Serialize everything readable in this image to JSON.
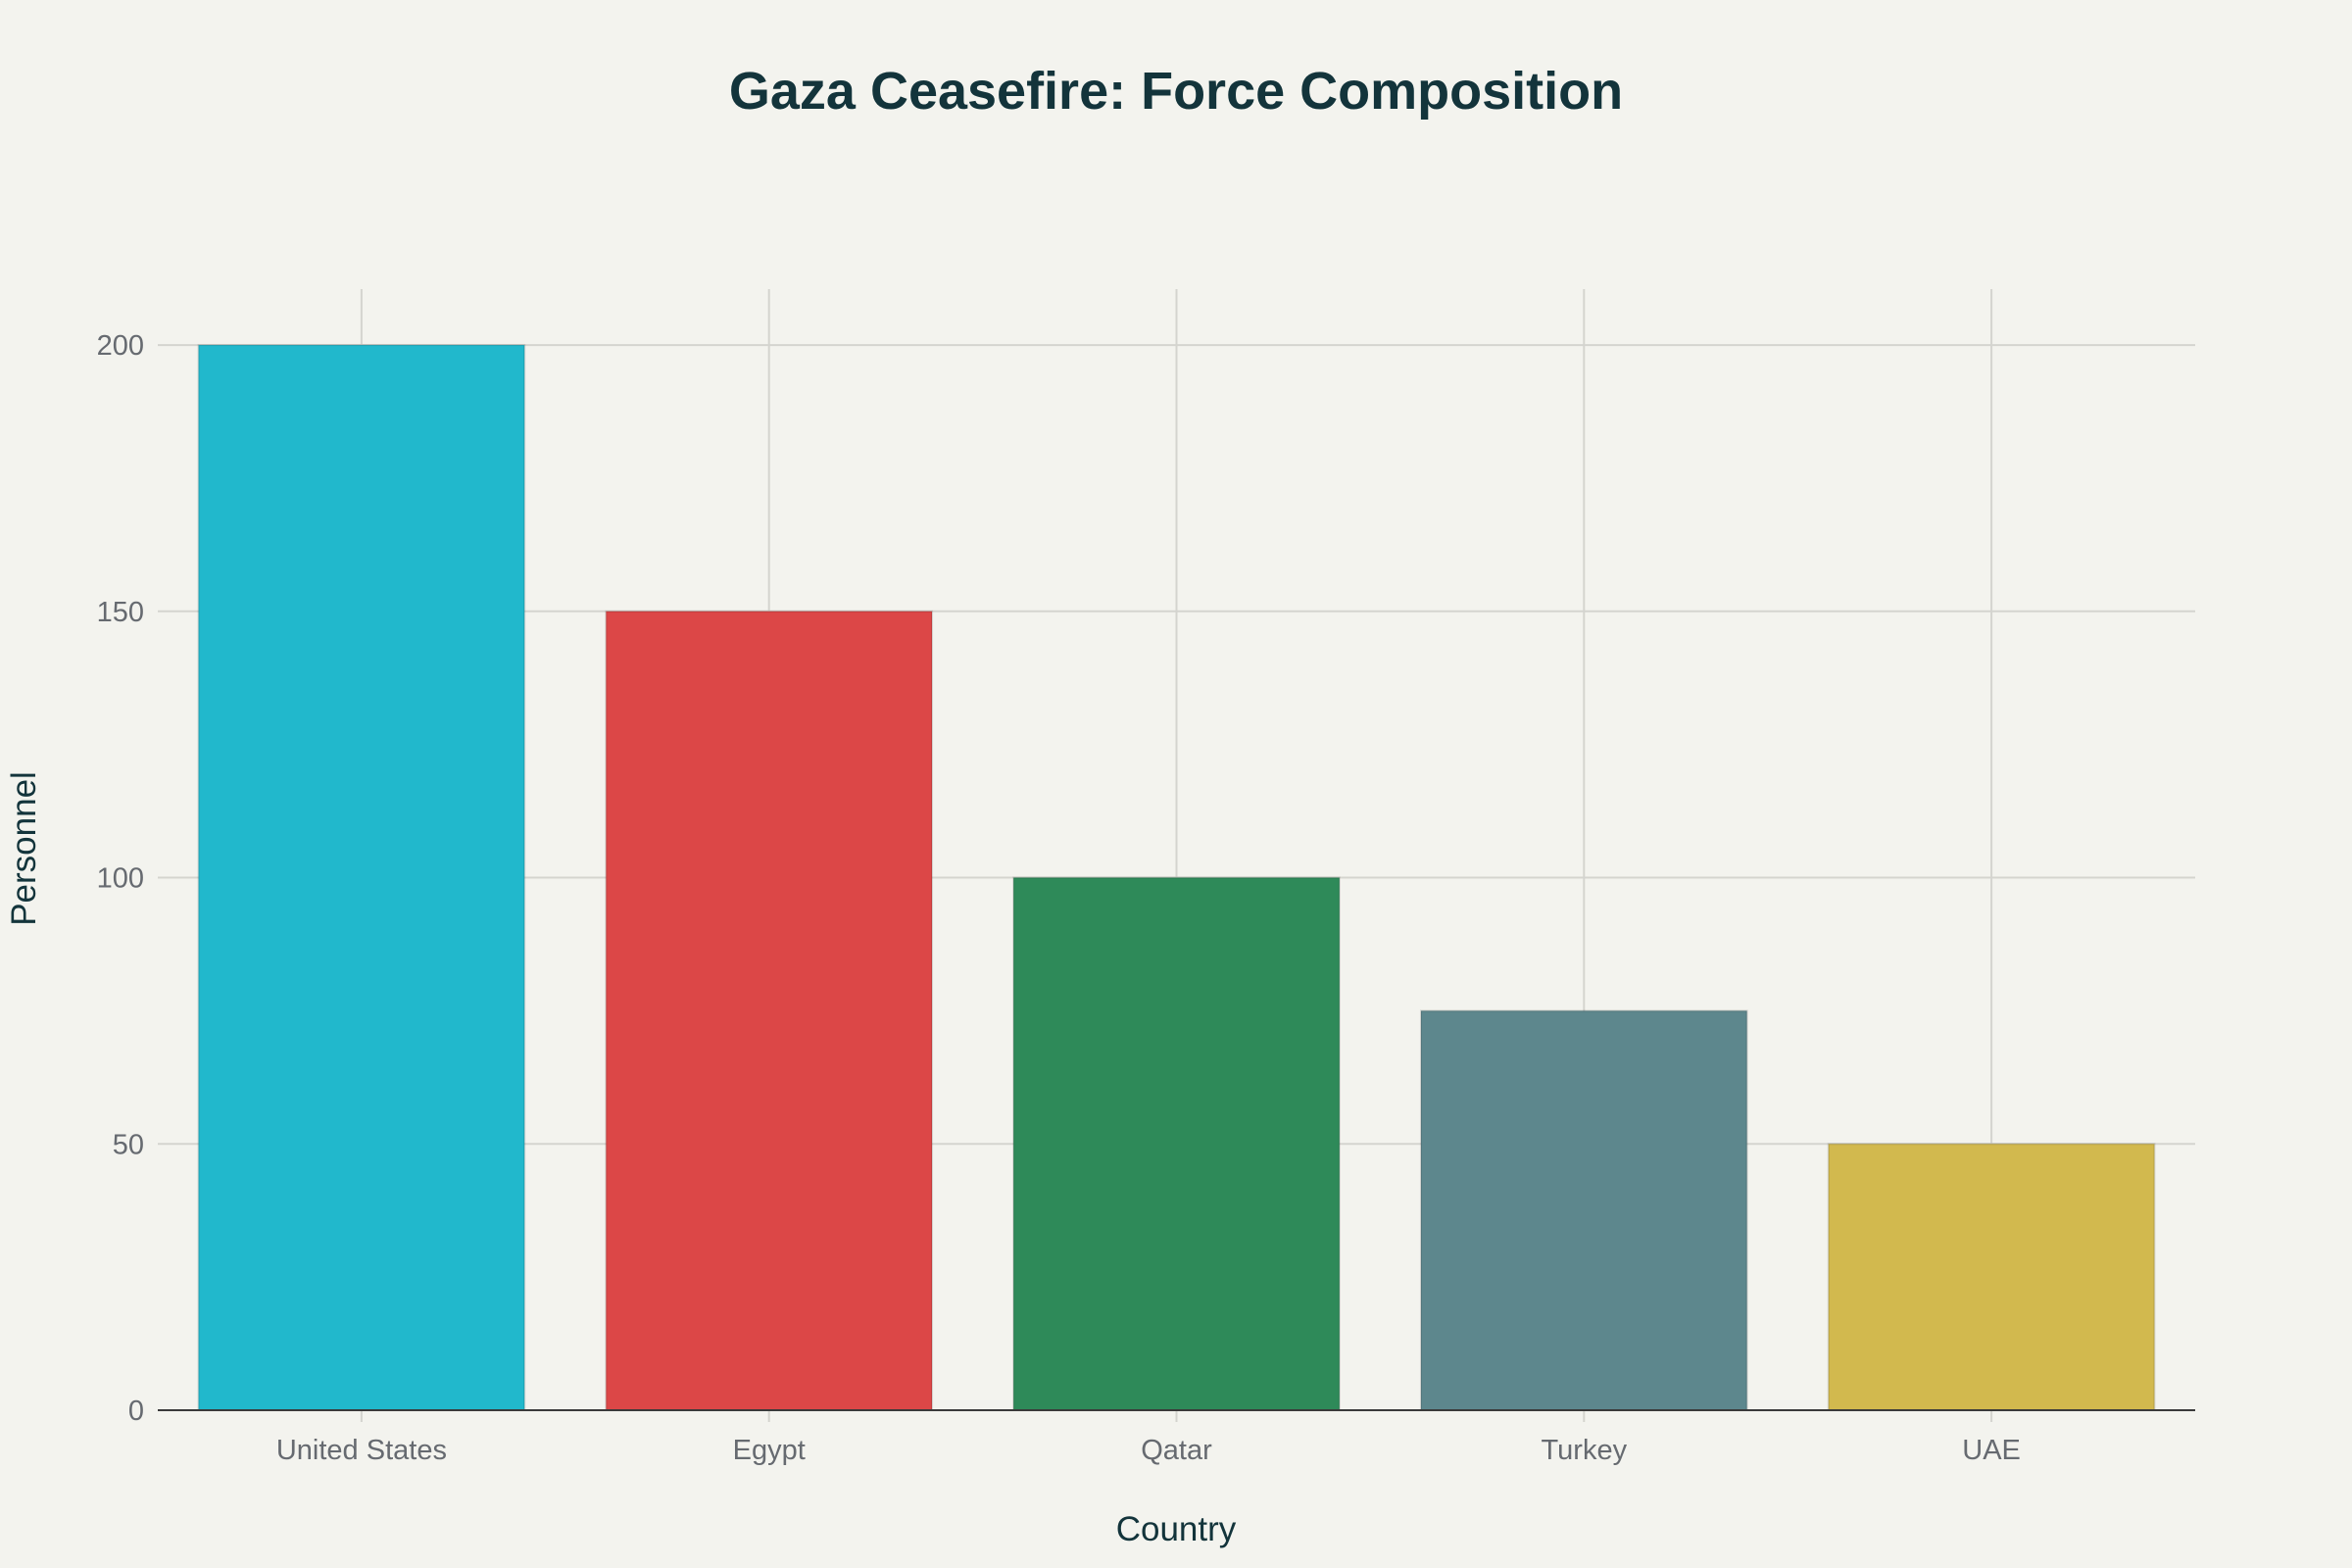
{
  "chart_data": {
    "type": "bar",
    "title": "Gaza Ceasefire: Force Composition",
    "xlabel": "Country",
    "ylabel": "Personnel",
    "categories": [
      "United States",
      "Egypt",
      "Qatar",
      "Turkey",
      "UAE"
    ],
    "values": [
      200,
      150,
      100,
      75,
      50
    ],
    "colors": [
      "#21b8cc",
      "#dc4747",
      "#2e8a59",
      "#5d878d",
      "#d2b94e"
    ],
    "ylim": [
      0,
      210.5
    ],
    "yticks": [
      0,
      50,
      100,
      150,
      200
    ],
    "grid": true,
    "legend": "none"
  }
}
